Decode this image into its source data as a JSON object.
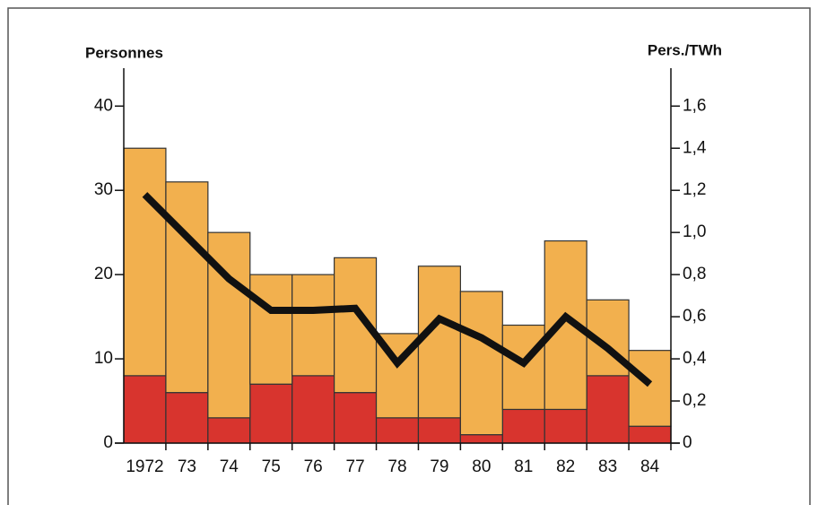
{
  "chart_data": {
    "type": "bar",
    "y_label": "Personnes",
    "y2_label": "Pers./TWh",
    "categories": [
      "1972",
      "73",
      "74",
      "75",
      "76",
      "77",
      "78",
      "79",
      "80",
      "81",
      "82",
      "83",
      "84"
    ],
    "series": [
      {
        "color": "#d8342e",
        "values": [
          8,
          6,
          3,
          7,
          8,
          6,
          3,
          3,
          1,
          4,
          4,
          8,
          2
        ]
      },
      {
        "color": "#f2b04e",
        "values": [
          27,
          25,
          22,
          13,
          12,
          16,
          10,
          18,
          17,
          10,
          20,
          9,
          9
        ]
      },
      {
        "type": "line",
        "axis": "y2",
        "color": "#111111",
        "values": [
          1.18,
          0.98,
          0.78,
          0.63,
          0.63,
          0.64,
          0.38,
          0.59,
          0.5,
          0.38,
          0.6,
          0.45,
          0.28
        ]
      }
    ],
    "ylim": [
      0,
      44.5
    ],
    "yticks": [
      0,
      10,
      20,
      30,
      40
    ],
    "y2lim": [
      0,
      1.78
    ],
    "y2ticks": [
      0,
      {
        "value": 0.2,
        "label": "0,2"
      },
      {
        "value": 0.4,
        "label": "0,4"
      },
      {
        "value": 0.6,
        "label": "0,6"
      },
      {
        "value": 0.8,
        "label": "0,8"
      },
      {
        "value": 1.0,
        "label": "1,0"
      },
      {
        "value": 1.2,
        "label": "1,2"
      },
      {
        "value": 1.4,
        "label": "1,4"
      },
      {
        "value": 1.6,
        "label": "1,6"
      }
    ],
    "stacked": true
  }
}
